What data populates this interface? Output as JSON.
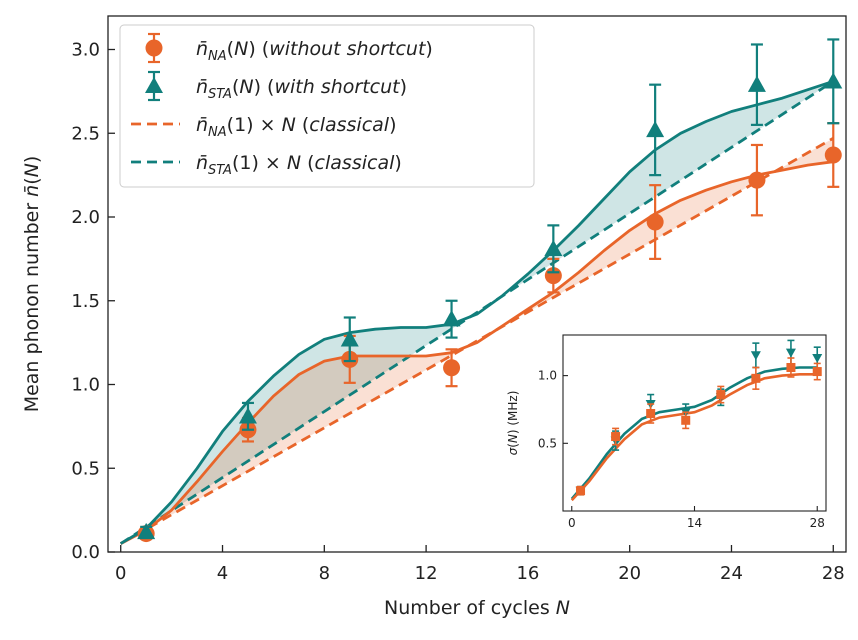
{
  "chart_data": {
    "type": "line",
    "xlabel": "Number of cycles N",
    "ylabel": "Mean phonon number n̄(N)",
    "xlim": [
      -0.5,
      28.5
    ],
    "ylim": [
      0.0,
      3.2
    ],
    "xticks": [
      "0",
      "4",
      "8",
      "12",
      "16",
      "20",
      "24",
      "28"
    ],
    "yticks": [
      "0.0",
      "0.5",
      "1.0",
      "1.5",
      "2.0",
      "2.5",
      "3.0"
    ],
    "legend_position": "top-left",
    "grid": false,
    "colors": {
      "orange": "#e8652a",
      "teal": "#117f7c"
    },
    "legend": [
      {
        "label": "n̄NA(N) (without shortcut)",
        "marker": "circle",
        "color": "#e8652a"
      },
      {
        "label": "n̄STA(N) (with shortcut)",
        "marker": "triangle",
        "color": "#117f7c"
      },
      {
        "label": "n̄NA(1) × N (classical)",
        "marker": "dashed",
        "color": "#e8652a"
      },
      {
        "label": "n̄STA(1) × N (classical)",
        "marker": "dashed",
        "color": "#117f7c"
      }
    ],
    "series": [
      {
        "name": "n̄NA(N) (without shortcut)",
        "kind": "points",
        "x": [
          1,
          5,
          9,
          13,
          17,
          21,
          25,
          28
        ],
        "y": [
          0.11,
          0.73,
          1.15,
          1.1,
          1.65,
          1.97,
          2.22,
          2.37
        ],
        "yerr": [
          0.02,
          0.07,
          0.14,
          0.11,
          0.1,
          0.22,
          0.21,
          0.19
        ]
      },
      {
        "name": "n̄STA(N) (with shortcut)",
        "kind": "points",
        "x": [
          1,
          5,
          9,
          13,
          17,
          21,
          25,
          28
        ],
        "y": [
          0.12,
          0.81,
          1.27,
          1.39,
          1.81,
          2.52,
          2.79,
          2.81
        ],
        "yerr": [
          0.03,
          0.08,
          0.13,
          0.11,
          0.14,
          0.27,
          0.24,
          0.25
        ]
      },
      {
        "name": "NA fit",
        "kind": "curve",
        "x": [
          0,
          1,
          2,
          3,
          4,
          5,
          6,
          7,
          8,
          9,
          10,
          11,
          12,
          13,
          14,
          15,
          16,
          17,
          18,
          19,
          20,
          21,
          22,
          23,
          24,
          25,
          26,
          27,
          28
        ],
        "y": [
          0.05,
          0.13,
          0.25,
          0.42,
          0.6,
          0.77,
          0.93,
          1.06,
          1.14,
          1.17,
          1.17,
          1.17,
          1.17,
          1.19,
          1.25,
          1.35,
          1.45,
          1.55,
          1.67,
          1.8,
          1.92,
          2.02,
          2.1,
          2.16,
          2.21,
          2.25,
          2.28,
          2.31,
          2.33
        ]
      },
      {
        "name": "STA fit",
        "kind": "curve",
        "x": [
          0,
          1,
          2,
          3,
          4,
          5,
          6,
          7,
          8,
          9,
          10,
          11,
          12,
          13,
          14,
          15,
          16,
          17,
          18,
          19,
          20,
          21,
          22,
          23,
          24,
          25,
          26,
          27,
          28
        ],
        "y": [
          0.05,
          0.14,
          0.3,
          0.5,
          0.72,
          0.9,
          1.05,
          1.18,
          1.27,
          1.31,
          1.33,
          1.34,
          1.34,
          1.36,
          1.42,
          1.53,
          1.66,
          1.8,
          1.95,
          2.11,
          2.27,
          2.4,
          2.5,
          2.57,
          2.63,
          2.67,
          2.71,
          2.76,
          2.81
        ]
      },
      {
        "name": "n̄NA(1) × N (classical)",
        "kind": "dashed",
        "x": [
          0,
          28
        ],
        "y": [
          0.05,
          2.47
        ]
      },
      {
        "name": "n̄STA(1) × N (classical)",
        "kind": "dashed",
        "x": [
          0,
          28
        ],
        "y": [
          0.05,
          2.81
        ]
      }
    ],
    "inset": {
      "type": "line",
      "ylabel": "σ(N) (MHz)",
      "xlim": [
        -1,
        29
      ],
      "ylim": [
        0.0,
        1.3
      ],
      "xticks": [
        "0",
        "14",
        "28"
      ],
      "yticks": [
        "0.5",
        "1.0"
      ],
      "series": [
        {
          "name": "NA sigma",
          "kind": "points",
          "x": [
            1,
            5,
            9,
            13,
            17,
            21,
            25,
            28
          ],
          "y": [
            0.15,
            0.55,
            0.72,
            0.67,
            0.86,
            0.98,
            1.06,
            1.03
          ],
          "yerr": [
            0.03,
            0.06,
            0.07,
            0.06,
            0.06,
            0.08,
            0.07,
            0.06
          ]
        },
        {
          "name": "STA sigma",
          "kind": "points",
          "x": [
            1,
            5,
            9,
            13,
            17,
            21,
            25,
            28
          ],
          "y": [
            0.15,
            0.52,
            0.79,
            0.73,
            0.84,
            1.15,
            1.17,
            1.13
          ],
          "yerr": [
            0.03,
            0.07,
            0.07,
            0.06,
            0.06,
            0.09,
            0.09,
            0.08
          ]
        },
        {
          "name": "NA sigma fit",
          "kind": "curve",
          "x": [
            0,
            2,
            4,
            6,
            8,
            10,
            12,
            14,
            16,
            18,
            20,
            22,
            24,
            26,
            28
          ],
          "y": [
            0.08,
            0.22,
            0.39,
            0.53,
            0.64,
            0.69,
            0.71,
            0.73,
            0.78,
            0.86,
            0.93,
            0.98,
            1.0,
            1.01,
            1.01
          ]
        },
        {
          "name": "STA sigma fit",
          "kind": "curve",
          "x": [
            0,
            2,
            4,
            6,
            8,
            10,
            12,
            14,
            16,
            18,
            20,
            22,
            24,
            26,
            28
          ],
          "y": [
            0.09,
            0.24,
            0.42,
            0.57,
            0.68,
            0.73,
            0.75,
            0.77,
            0.82,
            0.91,
            0.98,
            1.03,
            1.05,
            1.06,
            1.06
          ]
        }
      ]
    }
  }
}
